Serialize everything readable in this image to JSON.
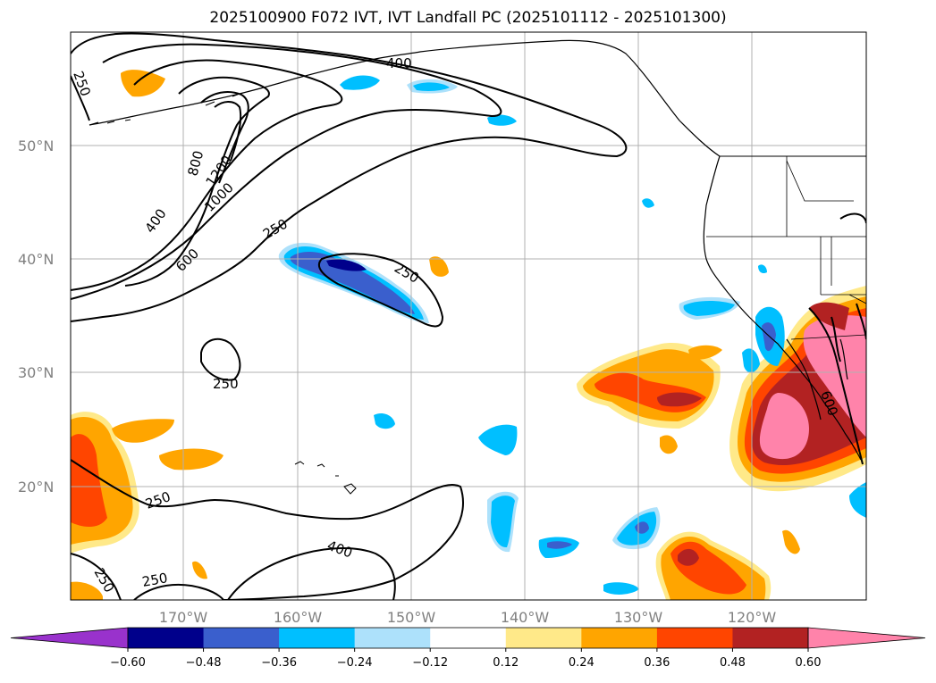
{
  "title": "2025100900 F072 IVT, IVT Landfall PC (2025101112 - 2025101300)",
  "lat_labels": [
    "50°N",
    "40°N",
    "30°N",
    "20°N"
  ],
  "lon_labels": [
    "170°W",
    "160°W",
    "150°W",
    "140°W",
    "130°W",
    "120°W"
  ],
  "colorbar": {
    "levels": [
      "−0.60",
      "−0.48",
      "−0.36",
      "−0.24",
      "−0.12",
      "0.12",
      "0.24",
      "0.36",
      "0.48",
      "0.60"
    ],
    "colors": [
      "#9932CC",
      "#00008B",
      "#3A5FCD",
      "#00BFFF",
      "#ADE1FB",
      "#FFFFFF",
      "#FFE989",
      "#FFA500",
      "#FF4500",
      "#B22222",
      "#FF83AA"
    ]
  },
  "contour_labels": {
    "c250_nw": "250",
    "c400_n": "400",
    "c800": "800",
    "c1200": "1200",
    "c1000": "1000",
    "c400_w": "400",
    "c600": "600",
    "c250_mid": "250",
    "c250_ar": "250",
    "c250_sub": "250",
    "c250_sw1": "250",
    "c400_s": "400",
    "c250_sw2": "250",
    "c250_sw3": "250",
    "c600_coast": "600"
  }
}
